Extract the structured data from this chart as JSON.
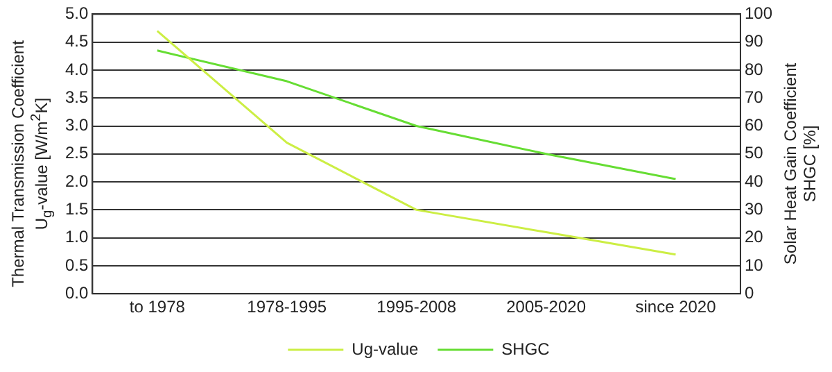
{
  "chart_data": {
    "type": "line",
    "categories": [
      "to 1978",
      "1978-1995",
      "1995-2008",
      "2005-2020",
      "since 2020"
    ],
    "series": [
      {
        "name": "Ug-value",
        "color": "#ccee44",
        "values": [
          4.7,
          2.7,
          1.5,
          1.1,
          0.7
        ]
      },
      {
        "name": "SHGC",
        "color": "#66dd33",
        "axis": "y2",
        "values": [
          87,
          76,
          60,
          50,
          41
        ]
      }
    ],
    "ylabel": "Thermal Transmission Coefficient\nU$_{g}$-value [W/m$^{2}$K]",
    "y2label": "Solar Heat Gain Coefficient\nSHGC  [%]",
    "ylim": [
      0,
      5
    ],
    "yticks": [
      {
        "value": 0,
        "label": "0.0"
      },
      {
        "value": 0.5,
        "label": "0.5"
      },
      {
        "value": 1,
        "label": "1.0"
      },
      {
        "value": 1.5,
        "label": "1.5"
      },
      {
        "value": 2,
        "label": "2.0"
      },
      {
        "value": 2.5,
        "label": "2.5"
      },
      {
        "value": 3,
        "label": "3.0"
      },
      {
        "value": 3.5,
        "label": "3.5"
      },
      {
        "value": 4,
        "label": "4.0"
      },
      {
        "value": 4.5,
        "label": "4.5"
      },
      {
        "value": 5,
        "label": "5.0"
      }
    ],
    "y2lim": [
      0,
      100
    ],
    "y2ticks": [
      0,
      10,
      20,
      30,
      40,
      50,
      60,
      70,
      80,
      90,
      100
    ],
    "grid": "y",
    "legend": "bottom",
    "marker": "none",
    "line_style": "solid"
  }
}
